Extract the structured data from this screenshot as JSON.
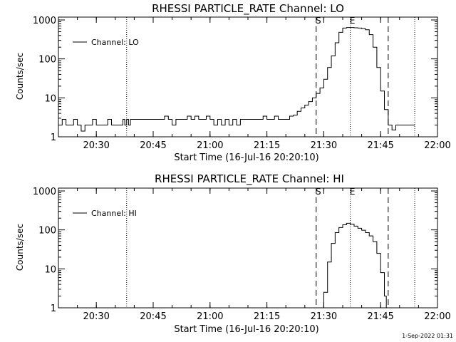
{
  "footer_timestamp": "1-Sep-2022 01:31",
  "chart_data": [
    {
      "type": "line",
      "title": "RHESSI PARTICLE_RATE Channel: LO",
      "xlabel": "Start Time (16-Jul-16 20:20:10)",
      "ylabel": "Counts/sec",
      "y_scale": "log",
      "ylim": [
        1,
        1000
      ],
      "xlim": [
        "20:20",
        "22:00"
      ],
      "x_ticks": [
        "20:30",
        "20:45",
        "21:00",
        "21:15",
        "21:30",
        "21:45",
        "22:00"
      ],
      "y_ticks": [
        "1",
        "10",
        "100",
        "1000"
      ],
      "legend": {
        "placement": "top-left",
        "entries": [
          "Channel: LO"
        ]
      },
      "markers": [
        {
          "label": "",
          "time": "20:38",
          "style": "dotted"
        },
        {
          "label": "S",
          "time": "21:28",
          "style": "dashed"
        },
        {
          "label": "E",
          "time": "21:37",
          "style": "dotted"
        },
        {
          "label": "",
          "time": "21:47",
          "style": "dashed"
        },
        {
          "label": "",
          "time": "21:54",
          "style": "dotted"
        }
      ],
      "series": [
        {
          "name": "Channel: LO",
          "x": [
            "20:20",
            "20:21",
            "20:22",
            "20:23",
            "20:24",
            "20:25",
            "20:26",
            "20:27",
            "20:28",
            "20:29",
            "20:30",
            "20:31",
            "20:32",
            "20:33",
            "20:34",
            "20:35",
            "20:36",
            "20:37",
            "20:37.5",
            "20:38",
            "20:38.5",
            "20:39",
            "20:40",
            "20:41",
            "20:42",
            "20:43",
            "20:44",
            "20:45",
            "20:46",
            "20:47",
            "20:48",
            "20:49",
            "20:50",
            "20:51",
            "20:52",
            "20:53",
            "20:54",
            "20:55",
            "20:56",
            "20:57",
            "20:58",
            "20:59",
            "21:00",
            "21:01",
            "21:02",
            "21:03",
            "21:04",
            "21:05",
            "21:06",
            "21:07",
            "21:08",
            "21:09",
            "21:10",
            "21:11",
            "21:12",
            "21:13",
            "21:14",
            "21:15",
            "21:16",
            "21:17",
            "21:18",
            "21:19",
            "21:20",
            "21:21",
            "21:22",
            "21:23",
            "21:24",
            "21:25",
            "21:26",
            "21:27",
            "21:28",
            "21:29",
            "21:30",
            "21:31",
            "21:32",
            "21:33",
            "21:34",
            "21:35",
            "21:36",
            "21:37",
            "21:38",
            "21:39",
            "21:40",
            "21:41",
            "21:42",
            "21:43",
            "21:44",
            "21:45",
            "21:46",
            "21:47",
            "21:48",
            "21:49",
            "21:50",
            "21:51",
            "21:52",
            "21:53",
            "21:54"
          ],
          "values": [
            2,
            2.8,
            2,
            2,
            2.8,
            2,
            1.4,
            2,
            2,
            2.8,
            2,
            2,
            2,
            2.8,
            2,
            2,
            2,
            2.8,
            2,
            2.8,
            2,
            2.8,
            2.8,
            2.8,
            2.8,
            2.8,
            2.8,
            2.8,
            2.8,
            2.8,
            3.4,
            2.8,
            2,
            2.8,
            2.8,
            2.8,
            3.4,
            2.8,
            3.4,
            2.8,
            2.8,
            3.4,
            2.8,
            2,
            2.8,
            2,
            2.8,
            2,
            2.8,
            2,
            2.8,
            2.8,
            2.8,
            2.8,
            2.8,
            2.8,
            3.4,
            2.8,
            2.8,
            3.4,
            2.8,
            2.8,
            2.8,
            3.4,
            3.6,
            4.5,
            5.5,
            6.5,
            8,
            10,
            13,
            18,
            30,
            60,
            120,
            260,
            480,
            620,
            640,
            640,
            630,
            620,
            600,
            560,
            420,
            200,
            60,
            15,
            5,
            2,
            1.5,
            2,
            2,
            2,
            2,
            2,
            2
          ]
        }
      ]
    },
    {
      "type": "line",
      "title": "RHESSI PARTICLE_RATE Channel: HI",
      "xlabel": "Start Time (16-Jul-16 20:20:10)",
      "ylabel": "Counts/sec",
      "y_scale": "log",
      "ylim": [
        1,
        1000
      ],
      "xlim": [
        "20:20",
        "22:00"
      ],
      "x_ticks": [
        "20:30",
        "20:45",
        "21:00",
        "21:15",
        "21:30",
        "21:45",
        "22:00"
      ],
      "y_ticks": [
        "1",
        "10",
        "100",
        "1000"
      ],
      "legend": {
        "placement": "top-left",
        "entries": [
          "Channel: HI"
        ]
      },
      "markers": [
        {
          "label": "",
          "time": "20:38",
          "style": "dotted"
        },
        {
          "label": "S",
          "time": "21:28",
          "style": "dashed"
        },
        {
          "label": "E",
          "time": "21:37",
          "style": "dotted"
        },
        {
          "label": "",
          "time": "21:47",
          "style": "dashed"
        },
        {
          "label": "",
          "time": "21:54",
          "style": "dotted"
        }
      ],
      "series": [
        {
          "name": "Channel: HI",
          "x": [
            "21:29.5",
            "21:30",
            "21:31",
            "21:32",
            "21:33",
            "21:34",
            "21:35",
            "21:36",
            "21:37",
            "21:38",
            "21:39",
            "21:40",
            "21:41",
            "21:42",
            "21:43",
            "21:44",
            "21:45",
            "21:46",
            "21:46.5"
          ],
          "values": [
            1,
            2.5,
            15,
            45,
            85,
            115,
            135,
            148,
            140,
            125,
            110,
            98,
            85,
            70,
            50,
            25,
            8,
            2,
            1
          ]
        }
      ]
    }
  ]
}
